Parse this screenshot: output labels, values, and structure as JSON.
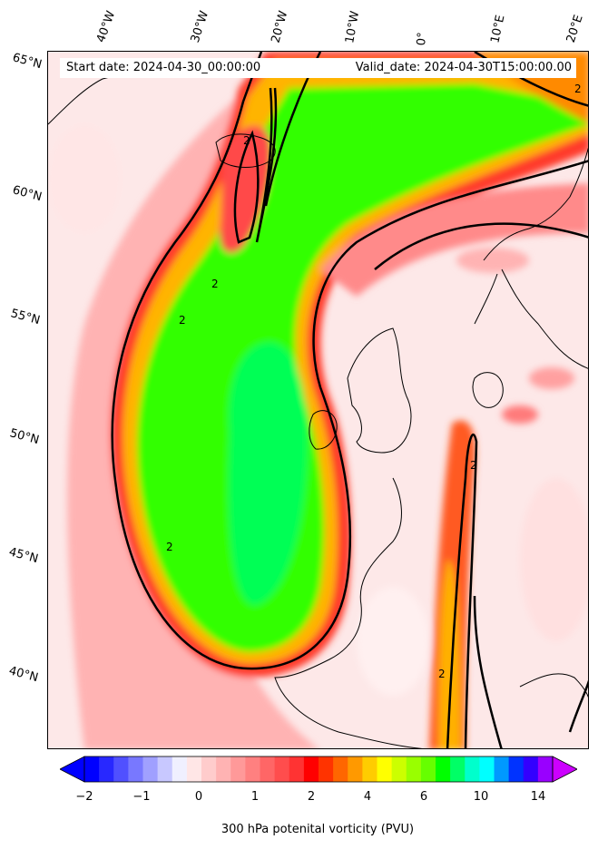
{
  "map": {
    "start_label": "Start date: 2024-04-30_00:00:00",
    "valid_label": "Valid_date: 2024-04-30T15:00:00.00",
    "lon_labels": [
      "40°W",
      "30°W",
      "20°W",
      "10°W",
      "0°",
      "10°E",
      "20°E"
    ],
    "lat_labels": [
      "65°N",
      "60°N",
      "55°N",
      "50°N",
      "45°N",
      "40°N"
    ],
    "contour_labels": [
      "2",
      "2",
      "2",
      "2",
      "2",
      "2",
      "2"
    ],
    "contour_level": 2,
    "colors": {
      "background": "#fde8e8",
      "coast": "#000000",
      "contour": "#000000"
    }
  },
  "colorbar": {
    "label": "300 hPa potenital vorticity (PVU)",
    "tick_labels": [
      "−2",
      "−1",
      "0",
      "1",
      "2",
      "4",
      "6",
      "10",
      "14"
    ],
    "colors": [
      "#0000ff",
      "#2828ff",
      "#5050ff",
      "#7878ff",
      "#a0a0ff",
      "#c8c8ff",
      "#f0f0ff",
      "#ffe6e6",
      "#ffcccc",
      "#ffb3b3",
      "#ff9999",
      "#ff8080",
      "#ff6666",
      "#ff4d4d",
      "#ff3333",
      "#ff0000",
      "#ff3300",
      "#ff6600",
      "#ff9900",
      "#ffcc00",
      "#ffff00",
      "#ccff00",
      "#99ff00",
      "#66ff00",
      "#00ff00",
      "#00ff66",
      "#00ffcc",
      "#00ffff",
      "#0099ff",
      "#0033ff",
      "#3300ff",
      "#9900ff"
    ],
    "extend_low": "#0000ff",
    "extend_high": "#cc00ff"
  }
}
